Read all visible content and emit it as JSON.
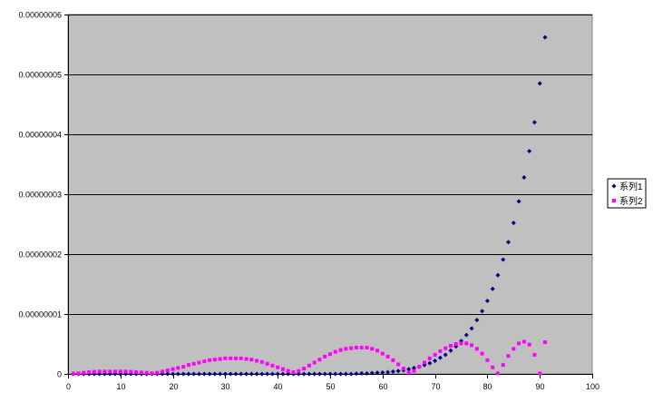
{
  "chart_data": {
    "type": "scatter",
    "title": "",
    "xlabel": "",
    "ylabel": "",
    "xlim": [
      0,
      100
    ],
    "ylim": [
      0,
      6e-08
    ],
    "x_ticks": [
      0,
      10,
      20,
      30,
      40,
      50,
      60,
      70,
      80,
      90,
      100
    ],
    "x_tick_labels": [
      "0",
      "10",
      "20",
      "30",
      "40",
      "50",
      "60",
      "70",
      "80",
      "90",
      "100"
    ],
    "y_ticks": [
      0,
      1e-08,
      2e-08,
      3e-08,
      4e-08,
      5e-08,
      6e-08
    ],
    "y_tick_labels": [
      "0",
      "0.00000001",
      "0.00000002",
      "0.00000003",
      "0.00000004",
      "0.00000005",
      "0.00000006"
    ],
    "grid": "horizontal major gridlines",
    "plot_background": "#c0c0c0",
    "legend_position": "right",
    "series": [
      {
        "name": "系列1",
        "color": "#000080",
        "marker": "diamond",
        "points": [
          [
            1,
            0
          ],
          [
            2,
            0
          ],
          [
            3,
            0
          ],
          [
            4,
            0
          ],
          [
            5,
            0
          ],
          [
            6,
            0
          ],
          [
            7,
            0
          ],
          [
            8,
            0
          ],
          [
            9,
            0
          ],
          [
            10,
            0
          ],
          [
            11,
            0
          ],
          [
            12,
            0
          ],
          [
            13,
            0
          ],
          [
            14,
            0
          ],
          [
            15,
            0
          ],
          [
            16,
            0
          ],
          [
            17,
            0
          ],
          [
            18,
            0
          ],
          [
            19,
            0
          ],
          [
            20,
            0
          ],
          [
            21,
            0
          ],
          [
            22,
            0
          ],
          [
            23,
            0
          ],
          [
            24,
            0
          ],
          [
            25,
            0
          ],
          [
            26,
            0
          ],
          [
            27,
            0
          ],
          [
            28,
            0
          ],
          [
            29,
            0
          ],
          [
            30,
            0
          ],
          [
            31,
            0
          ],
          [
            32,
            0
          ],
          [
            33,
            0
          ],
          [
            34,
            0
          ],
          [
            35,
            0
          ],
          [
            36,
            0
          ],
          [
            37,
            0
          ],
          [
            38,
            0
          ],
          [
            39,
            0
          ],
          [
            40,
            0
          ],
          [
            41,
            0
          ],
          [
            42,
            0
          ],
          [
            43,
            0
          ],
          [
            44,
            0
          ],
          [
            45,
            0
          ],
          [
            46,
            0
          ],
          [
            47,
            0
          ],
          [
            48,
            0
          ],
          [
            49,
            0
          ],
          [
            50,
            0
          ],
          [
            51,
            0
          ],
          [
            52,
            0
          ],
          [
            53,
            0
          ],
          [
            54,
            0
          ],
          [
            55,
            5e-11
          ],
          [
            56,
            1e-10
          ],
          [
            57,
            1e-10
          ],
          [
            58,
            1.5e-10
          ],
          [
            59,
            2e-10
          ],
          [
            60,
            2.5e-10
          ],
          [
            61,
            3e-10
          ],
          [
            62,
            4e-10
          ],
          [
            63,
            5e-10
          ],
          [
            64,
            6e-10
          ],
          [
            65,
            8e-10
          ],
          [
            66,
            1e-09
          ],
          [
            67,
            1.2e-09
          ],
          [
            68,
            1.5e-09
          ],
          [
            69,
            1.8e-09
          ],
          [
            70,
            2.2e-09
          ],
          [
            71,
            2.7e-09
          ],
          [
            72,
            3.2e-09
          ],
          [
            73,
            3.9e-09
          ],
          [
            74,
            4.6e-09
          ],
          [
            75,
            5.5e-09
          ],
          [
            76,
            6.5e-09
          ],
          [
            77,
            7.6e-09
          ],
          [
            78,
            9e-09
          ],
          [
            79,
            1.05e-08
          ],
          [
            80,
            1.22e-08
          ],
          [
            81,
            1.42e-08
          ],
          [
            82,
            1.65e-08
          ],
          [
            83,
            1.91e-08
          ],
          [
            84,
            2.2e-08
          ],
          [
            85,
            2.52e-08
          ],
          [
            86,
            2.88e-08
          ],
          [
            87,
            3.28e-08
          ],
          [
            88,
            3.72e-08
          ],
          [
            89,
            4.2e-08
          ],
          [
            90,
            4.85e-08
          ],
          [
            91,
            5.62e-08
          ]
        ]
      },
      {
        "name": "系列2",
        "color": "#ff00ff",
        "marker": "square",
        "points": [
          [
            1,
            5e-11
          ],
          [
            2,
            1e-10
          ],
          [
            3,
            2e-10
          ],
          [
            4,
            3e-10
          ],
          [
            5,
            3.5e-10
          ],
          [
            6,
            4e-10
          ],
          [
            7,
            4e-10
          ],
          [
            8,
            4e-10
          ],
          [
            9,
            4e-10
          ],
          [
            10,
            4e-10
          ],
          [
            11,
            4e-10
          ],
          [
            12,
            3.5e-10
          ],
          [
            13,
            3e-10
          ],
          [
            14,
            2.5e-10
          ],
          [
            15,
            2e-10
          ],
          [
            16,
            1e-10
          ],
          [
            17,
            2e-10
          ],
          [
            18,
            4e-10
          ],
          [
            19,
            6e-10
          ],
          [
            20,
            8e-10
          ],
          [
            21,
            1e-09
          ],
          [
            22,
            1.2e-09
          ],
          [
            23,
            1.5e-09
          ],
          [
            24,
            1.7e-09
          ],
          [
            25,
            1.9e-09
          ],
          [
            26,
            2.1e-09
          ],
          [
            27,
            2.3e-09
          ],
          [
            28,
            2.4e-09
          ],
          [
            29,
            2.5e-09
          ],
          [
            30,
            2.6e-09
          ],
          [
            31,
            2.6e-09
          ],
          [
            32,
            2.6e-09
          ],
          [
            33,
            2.6e-09
          ],
          [
            34,
            2.5e-09
          ],
          [
            35,
            2.4e-09
          ],
          [
            36,
            2.2e-09
          ],
          [
            37,
            2e-09
          ],
          [
            38,
            1.7e-09
          ],
          [
            39,
            1.4e-09
          ],
          [
            40,
            1.1e-09
          ],
          [
            41,
            8e-10
          ],
          [
            42,
            5e-10
          ],
          [
            43,
            3e-10
          ],
          [
            44,
            5e-10
          ],
          [
            45,
            9e-10
          ],
          [
            46,
            1.4e-09
          ],
          [
            47,
            1.9e-09
          ],
          [
            48,
            2.4e-09
          ],
          [
            49,
            2.9e-09
          ],
          [
            50,
            3.3e-09
          ],
          [
            51,
            3.7e-09
          ],
          [
            52,
            4e-09
          ],
          [
            53,
            4.2e-09
          ],
          [
            54,
            4.3e-09
          ],
          [
            55,
            4.4e-09
          ],
          [
            56,
            4.4e-09
          ],
          [
            57,
            4.4e-09
          ],
          [
            58,
            4.2e-09
          ],
          [
            59,
            3.9e-09
          ],
          [
            60,
            3.4e-09
          ],
          [
            61,
            2.9e-09
          ],
          [
            62,
            2.3e-09
          ],
          [
            63,
            1.6e-09
          ],
          [
            64,
            9e-10
          ],
          [
            65,
            2e-10
          ],
          [
            66,
            5e-10
          ],
          [
            67,
            1.2e-09
          ],
          [
            68,
            1.9e-09
          ],
          [
            69,
            2.6e-09
          ],
          [
            70,
            3.2e-09
          ],
          [
            71,
            3.8e-09
          ],
          [
            72,
            4.3e-09
          ],
          [
            73,
            4.7e-09
          ],
          [
            74,
            5e-09
          ],
          [
            75,
            5.1e-09
          ],
          [
            76,
            5.1e-09
          ],
          [
            77,
            4.8e-09
          ],
          [
            78,
            4.2e-09
          ],
          [
            79,
            3.4e-09
          ],
          [
            80,
            2.3e-09
          ],
          [
            81,
            1.1e-09
          ],
          [
            82,
            1e-10
          ],
          [
            83,
            1.5e-09
          ],
          [
            84,
            3e-09
          ],
          [
            85,
            4.2e-09
          ],
          [
            86,
            5.1e-09
          ],
          [
            87,
            5.4e-09
          ],
          [
            88,
            4.9e-09
          ],
          [
            89,
            3.2e-09
          ],
          [
            90,
            1e-10
          ],
          [
            91,
            5.3e-09
          ]
        ]
      }
    ]
  }
}
